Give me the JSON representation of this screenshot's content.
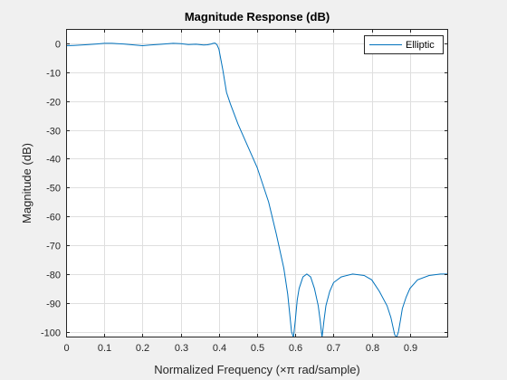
{
  "chart_data": {
    "type": "line",
    "title": "Magnitude Response (dB)",
    "xlabel": "Normalized Frequency (×π rad/sample)",
    "ylabel": "Magnitude (dB)",
    "xlim": [
      0,
      1
    ],
    "ylim": [
      -102,
      5
    ],
    "xticks": [
      0,
      0.1,
      0.2,
      0.3,
      0.4,
      0.5,
      0.6,
      0.7,
      0.8,
      0.9
    ],
    "xtick_labels": [
      "0",
      "0.1",
      "0.2",
      "0.3",
      "0.4",
      "0.5",
      "0.6",
      "0.7",
      "0.8",
      "0.9"
    ],
    "yticks": [
      0,
      -10,
      -20,
      -30,
      -40,
      -50,
      -60,
      -70,
      -80,
      -90,
      -100
    ],
    "ytick_labels": [
      "0",
      "-10",
      "-20",
      "-30",
      "-40",
      "-50",
      "-60",
      "-70",
      "-80",
      "-90",
      "-100"
    ],
    "grid": true,
    "legend_position": "top-right",
    "colors": {
      "line": "#0072bd",
      "grid": "#dfdfdf",
      "axes": "#262626",
      "background": "#ffffff",
      "figure": "#f0f0f0"
    },
    "series": [
      {
        "name": "Elliptic",
        "x": [
          0,
          0.02,
          0.05,
          0.08,
          0.1,
          0.12,
          0.15,
          0.18,
          0.2,
          0.22,
          0.25,
          0.28,
          0.3,
          0.32,
          0.34,
          0.36,
          0.37,
          0.38,
          0.385,
          0.39,
          0.395,
          0.4,
          0.41,
          0.42,
          0.43,
          0.45,
          0.47,
          0.5,
          0.53,
          0.55,
          0.57,
          0.58,
          0.59,
          0.595,
          0.6,
          0.605,
          0.61,
          0.62,
          0.63,
          0.64,
          0.65,
          0.66,
          0.665,
          0.67,
          0.675,
          0.68,
          0.69,
          0.7,
          0.72,
          0.75,
          0.78,
          0.8,
          0.82,
          0.84,
          0.85,
          0.86,
          0.865,
          0.87,
          0.875,
          0.88,
          0.89,
          0.9,
          0.92,
          0.95,
          0.98,
          1.0
        ],
        "y": [
          -0.8,
          -0.7,
          -0.5,
          -0.2,
          0,
          0,
          -0.2,
          -0.6,
          -0.8,
          -0.6,
          -0.3,
          0,
          -0.1,
          -0.4,
          -0.3,
          -0.6,
          -0.5,
          -0.2,
          0,
          0.1,
          -0.5,
          -2,
          -9,
          -17,
          -21,
          -28,
          -34,
          -43,
          -55,
          -66,
          -78,
          -87,
          -100,
          -102,
          -96,
          -89,
          -85,
          -81,
          -80,
          -81,
          -85,
          -91,
          -96,
          -102,
          -96,
          -91,
          -86,
          -83,
          -81,
          -80,
          -80.5,
          -82,
          -86,
          -91,
          -95,
          -101,
          -102,
          -100,
          -96,
          -92,
          -88,
          -85,
          -82,
          -80.5,
          -80,
          -80
        ]
      }
    ]
  }
}
